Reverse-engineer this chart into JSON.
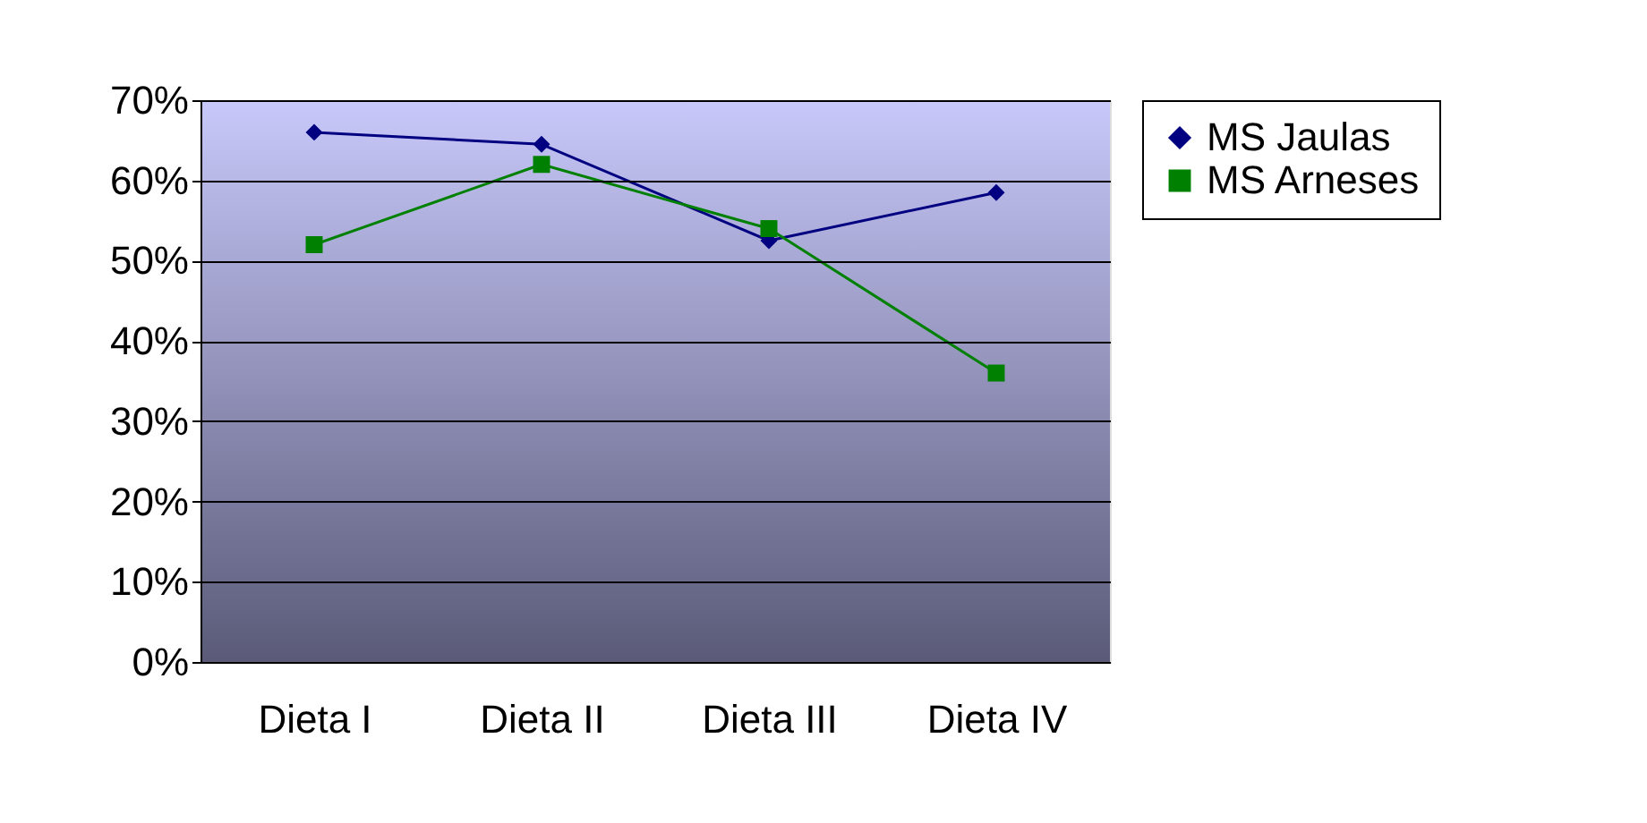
{
  "chart_data": {
    "type": "line",
    "categories": [
      "Dieta I",
      "Dieta II",
      "Dieta III",
      "Dieta IV"
    ],
    "series": [
      {
        "name": "MS Jaulas",
        "color": "#000080",
        "marker": "diamond",
        "values": [
          66,
          64.5,
          52.5,
          58.5
        ]
      },
      {
        "name": "MS Arneses",
        "color": "#008000",
        "marker": "square",
        "values": [
          52,
          62,
          54,
          36
        ]
      }
    ],
    "ylim": [
      0,
      70
    ],
    "yticks": [
      {
        "value": 0,
        "label": "0%"
      },
      {
        "value": 10,
        "label": "10%"
      },
      {
        "value": 20,
        "label": "20%"
      },
      {
        "value": 30,
        "label": "30%"
      },
      {
        "value": 40,
        "label": "40%"
      },
      {
        "value": 50,
        "label": "50%"
      },
      {
        "value": 60,
        "label": "60%"
      },
      {
        "value": 70,
        "label": "70%"
      }
    ],
    "grid": "y",
    "legend": "right",
    "line_style": "solid"
  }
}
